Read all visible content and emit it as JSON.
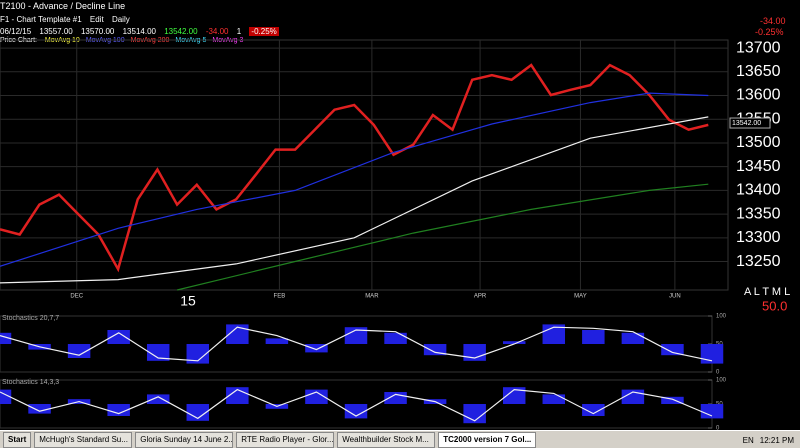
{
  "window": {
    "title": "T2100 - Advance / Decline Line"
  },
  "toolbar": {
    "template": "F1 - Chart Template #1",
    "edit": "Edit",
    "period": "Daily",
    "change": "-34.00",
    "change_pct": "-0.25%"
  },
  "quote": {
    "date": "06/12/15",
    "open": "13557.00",
    "high": "13570.00",
    "low": "13514.00",
    "close": "13542.00",
    "change": "-34.00",
    "volume": "1",
    "change_pct": "-0.25%"
  },
  "studies": {
    "label": "Price Chart:",
    "items": [
      {
        "text": "MovAvg 10",
        "color": "#ffff40"
      },
      {
        "text": "MovAvg 100",
        "color": "#6060ff"
      },
      {
        "text": "MovAvg 200",
        "color": "#ff4040"
      },
      {
        "text": "MovAvg 5",
        "color": "#40e0ff"
      },
      {
        "text": "MovAvg 3",
        "color": "#ff40ff"
      }
    ]
  },
  "chart_data": [
    {
      "type": "line",
      "xlim": [
        0,
        37
      ],
      "ylim": [
        13190,
        13717
      ],
      "yticks": [
        13250,
        13300,
        13350,
        13400,
        13450,
        13500,
        13550,
        13600,
        13650,
        13700
      ],
      "xticks": [
        {
          "value": 3.9,
          "label": "DEC"
        },
        {
          "value": 14.2,
          "label": "FEB"
        },
        {
          "value": 18.9,
          "label": "MAR"
        },
        {
          "value": 24.4,
          "label": "APR"
        },
        {
          "value": 29.5,
          "label": "MAY"
        },
        {
          "value": 34.3,
          "label": "JUN"
        }
      ],
      "grid": true,
      "annotations": [
        "15",
        "A L T M L",
        "50.0"
      ],
      "series": [
        {
          "color": "#e02020",
          "x": [
            0,
            1,
            2,
            3,
            4,
            5,
            6,
            7,
            8,
            9,
            10,
            11,
            12,
            13,
            14,
            15,
            16,
            17,
            18,
            19,
            20,
            21,
            22,
            23,
            24,
            25,
            26,
            27,
            28,
            29,
            30,
            31,
            32,
            33,
            34,
            35,
            36
          ],
          "values": [
            13318,
            13307,
            13370,
            13391,
            13349,
            13307,
            13234,
            13381,
            13444,
            13370,
            13412,
            13360,
            13381,
            13433,
            13486,
            13486,
            13528,
            13570,
            13580,
            13538,
            13475,
            13496,
            13559,
            13528,
            13633,
            13643,
            13633,
            13664,
            13601,
            13612,
            13622,
            13664,
            13643,
            13601,
            13549,
            13528,
            13538
          ]
        },
        {
          "color": "#2030e0",
          "x": [
            0,
            6,
            10,
            15,
            20,
            25,
            30,
            33,
            36
          ],
          "values": [
            13240,
            13320,
            13360,
            13400,
            13480,
            13540,
            13585,
            13605,
            13600
          ]
        },
        {
          "color": "#f0f0f0",
          "x": [
            0,
            6,
            12,
            18,
            24,
            30,
            36
          ],
          "values": [
            13205,
            13212,
            13245,
            13300,
            13420,
            13510,
            13555
          ]
        },
        {
          "color": "#208020",
          "x": [
            9,
            15,
            21,
            27,
            33,
            36
          ],
          "values": [
            13190,
            13250,
            13310,
            13360,
            13400,
            13413
          ]
        }
      ]
    },
    {
      "type": "line",
      "title": "Stochastics 20,7,7",
      "xlim": [
        0,
        18
      ],
      "ylim": [
        0,
        100
      ],
      "yticks": [
        0,
        50,
        100
      ],
      "series": [
        {
          "style": "bar",
          "color": "#2020e0",
          "values": [
            70,
            40,
            25,
            75,
            20,
            15,
            85,
            60,
            35,
            80,
            70,
            30,
            20,
            55,
            85,
            75,
            70,
            30,
            15
          ]
        },
        {
          "color": "#f0f0f0",
          "values": [
            65,
            45,
            30,
            70,
            25,
            20,
            80,
            65,
            40,
            75,
            72,
            35,
            25,
            50,
            80,
            78,
            72,
            35,
            20
          ]
        }
      ]
    },
    {
      "type": "line",
      "title": "Stochastics 14,3,3",
      "xlim": [
        0,
        18
      ],
      "ylim": [
        0,
        100
      ],
      "yticks": [
        0,
        50,
        100
      ],
      "series": [
        {
          "style": "bar",
          "color": "#2020e0",
          "values": [
            80,
            30,
            60,
            25,
            70,
            15,
            85,
            40,
            80,
            20,
            75,
            60,
            10,
            85,
            70,
            25,
            80,
            65,
            20
          ]
        },
        {
          "color": "#f0f0f0",
          "values": [
            75,
            35,
            55,
            30,
            65,
            20,
            80,
            45,
            75,
            25,
            70,
            55,
            15,
            80,
            72,
            30,
            75,
            60,
            25
          ]
        }
      ]
    }
  ],
  "taskbar": {
    "start": "Start",
    "items": [
      "McHugh's Standard Su...",
      "Gloria Sunday 14 June 2...",
      "RTE Radio Player - Glor...",
      "Wealthbuilder Stock M...",
      "TC2000 version 7 Gol..."
    ],
    "lang": "EN",
    "time": "12:21 PM"
  }
}
